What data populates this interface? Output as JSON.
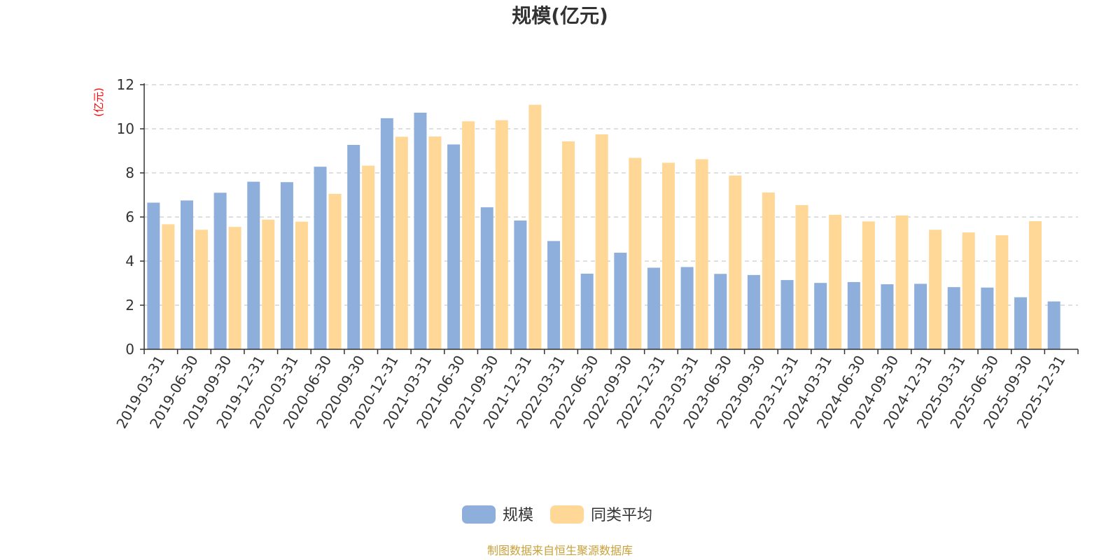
{
  "chart_data": {
    "type": "bar",
    "title": "规模(亿元)",
    "ylabel": "(亿元)",
    "xlabel": "",
    "ylim": [
      0,
      12
    ],
    "yticks": [
      0,
      2,
      4,
      6,
      8,
      10,
      12
    ],
    "grid": true,
    "legend_position": "bottom-center",
    "categories": [
      "2019-03-31",
      "2019-06-30",
      "2019-09-30",
      "2019-12-31",
      "2020-03-31",
      "2020-06-30",
      "2020-09-30",
      "2020-12-31",
      "2021-03-31",
      "2021-06-30",
      "2021-09-30",
      "2021-12-31",
      "2022-03-31",
      "2022-06-30",
      "2022-09-30",
      "2022-12-31",
      "2023-03-31",
      "2023-06-30",
      "2023-09-30",
      "2023-12-31",
      "2024-03-31",
      "2024-06-30",
      "2024-09-30",
      "2024-12-31",
      "2025-03-31",
      "2025-06-30",
      "2025-09-30",
      "2025-12-31"
    ],
    "series": [
      {
        "name": "规模",
        "color": "#8eaedb",
        "values": [
          6.65,
          6.75,
          7.1,
          7.6,
          7.58,
          8.28,
          9.27,
          10.48,
          10.73,
          9.29,
          6.44,
          5.84,
          4.91,
          3.43,
          4.38,
          3.7,
          3.73,
          3.42,
          3.37,
          3.14,
          3.01,
          3.05,
          2.95,
          2.97,
          2.82,
          2.8,
          2.36,
          2.17
        ]
      },
      {
        "name": "同类平均",
        "color": "#ffd897",
        "values": [
          5.67,
          5.42,
          5.55,
          5.88,
          5.79,
          7.05,
          8.33,
          9.64,
          9.65,
          10.34,
          10.39,
          11.09,
          9.43,
          9.75,
          8.68,
          8.46,
          8.62,
          7.88,
          7.11,
          6.54,
          6.1,
          5.8,
          6.07,
          5.42,
          5.3,
          5.17,
          5.81,
          null
        ]
      }
    ]
  },
  "source_text": "制图数据来自恒生聚源数据库"
}
